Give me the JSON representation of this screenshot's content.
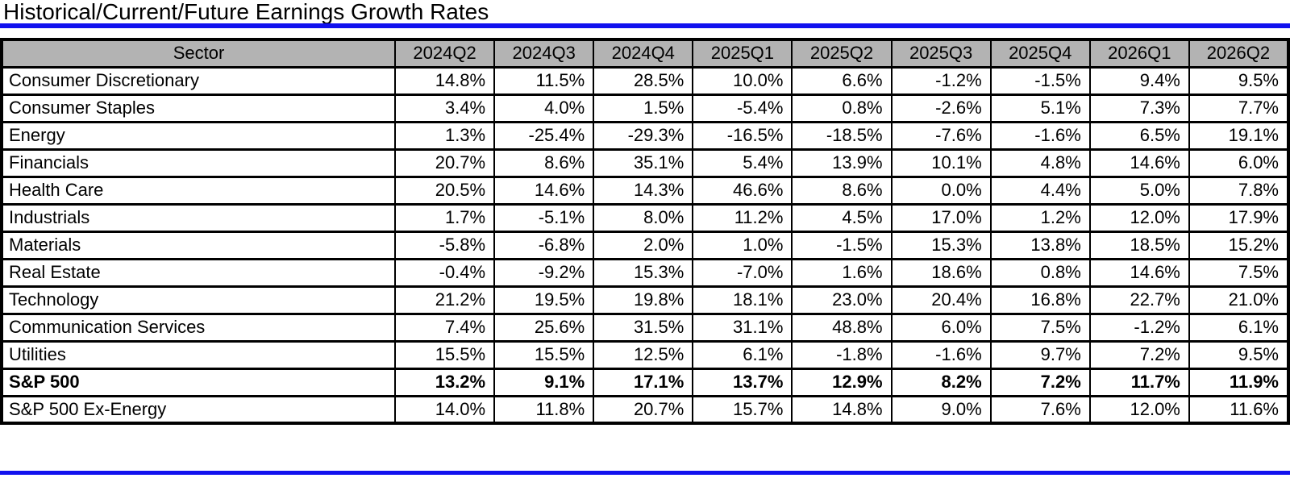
{
  "page": {
    "title": "Historical/Current/Future Earnings Growth Rates"
  },
  "colors": {
    "rule_blue": "#1111ee",
    "header_bg": "#b3b3b3",
    "border_black": "#000000"
  },
  "chart_data": {
    "type": "table",
    "title": "Historical/Current/Future Earnings Growth Rates",
    "columns": [
      "Sector",
      "2024Q2",
      "2024Q3",
      "2024Q4",
      "2025Q1",
      "2025Q2",
      "2025Q3",
      "2025Q4",
      "2026Q1",
      "2026Q2"
    ],
    "rows": [
      {
        "sector": "Consumer Discretionary",
        "bold": false,
        "values": [
          "14.8%",
          "11.5%",
          "28.5%",
          "10.0%",
          "6.6%",
          "-1.2%",
          "-1.5%",
          "9.4%",
          "9.5%"
        ]
      },
      {
        "sector": "Consumer Staples",
        "bold": false,
        "values": [
          "3.4%",
          "4.0%",
          "1.5%",
          "-5.4%",
          "0.8%",
          "-2.6%",
          "5.1%",
          "7.3%",
          "7.7%"
        ]
      },
      {
        "sector": "Energy",
        "bold": false,
        "values": [
          "1.3%",
          "-25.4%",
          "-29.3%",
          "-16.5%",
          "-18.5%",
          "-7.6%",
          "-1.6%",
          "6.5%",
          "19.1%"
        ]
      },
      {
        "sector": "Financials",
        "bold": false,
        "values": [
          "20.7%",
          "8.6%",
          "35.1%",
          "5.4%",
          "13.9%",
          "10.1%",
          "4.8%",
          "14.6%",
          "6.0%"
        ]
      },
      {
        "sector": "Health Care",
        "bold": false,
        "values": [
          "20.5%",
          "14.6%",
          "14.3%",
          "46.6%",
          "8.6%",
          "0.0%",
          "4.4%",
          "5.0%",
          "7.8%"
        ]
      },
      {
        "sector": "Industrials",
        "bold": false,
        "values": [
          "1.7%",
          "-5.1%",
          "8.0%",
          "11.2%",
          "4.5%",
          "17.0%",
          "1.2%",
          "12.0%",
          "17.9%"
        ]
      },
      {
        "sector": "Materials",
        "bold": false,
        "values": [
          "-5.8%",
          "-6.8%",
          "2.0%",
          "1.0%",
          "-1.5%",
          "15.3%",
          "13.8%",
          "18.5%",
          "15.2%"
        ]
      },
      {
        "sector": "Real Estate",
        "bold": false,
        "values": [
          "-0.4%",
          "-9.2%",
          "15.3%",
          "-7.0%",
          "1.6%",
          "18.6%",
          "0.8%",
          "14.6%",
          "7.5%"
        ]
      },
      {
        "sector": "Technology",
        "bold": false,
        "values": [
          "21.2%",
          "19.5%",
          "19.8%",
          "18.1%",
          "23.0%",
          "20.4%",
          "16.8%",
          "22.7%",
          "21.0%"
        ]
      },
      {
        "sector": "Communication Services",
        "bold": false,
        "values": [
          "7.4%",
          "25.6%",
          "31.5%",
          "31.1%",
          "48.8%",
          "6.0%",
          "7.5%",
          "-1.2%",
          "6.1%"
        ]
      },
      {
        "sector": "Utilities",
        "bold": false,
        "values": [
          "15.5%",
          "15.5%",
          "12.5%",
          "6.1%",
          "-1.8%",
          "-1.6%",
          "9.7%",
          "7.2%",
          "9.5%"
        ]
      },
      {
        "sector": "S&P 500",
        "bold": true,
        "values": [
          "13.2%",
          "9.1%",
          "17.1%",
          "13.7%",
          "12.9%",
          "8.2%",
          "7.2%",
          "11.7%",
          "11.9%"
        ]
      },
      {
        "sector": "S&P 500 Ex-Energy",
        "bold": false,
        "values": [
          "14.0%",
          "11.8%",
          "20.7%",
          "15.7%",
          "14.8%",
          "9.0%",
          "7.6%",
          "12.0%",
          "11.6%"
        ]
      }
    ]
  }
}
